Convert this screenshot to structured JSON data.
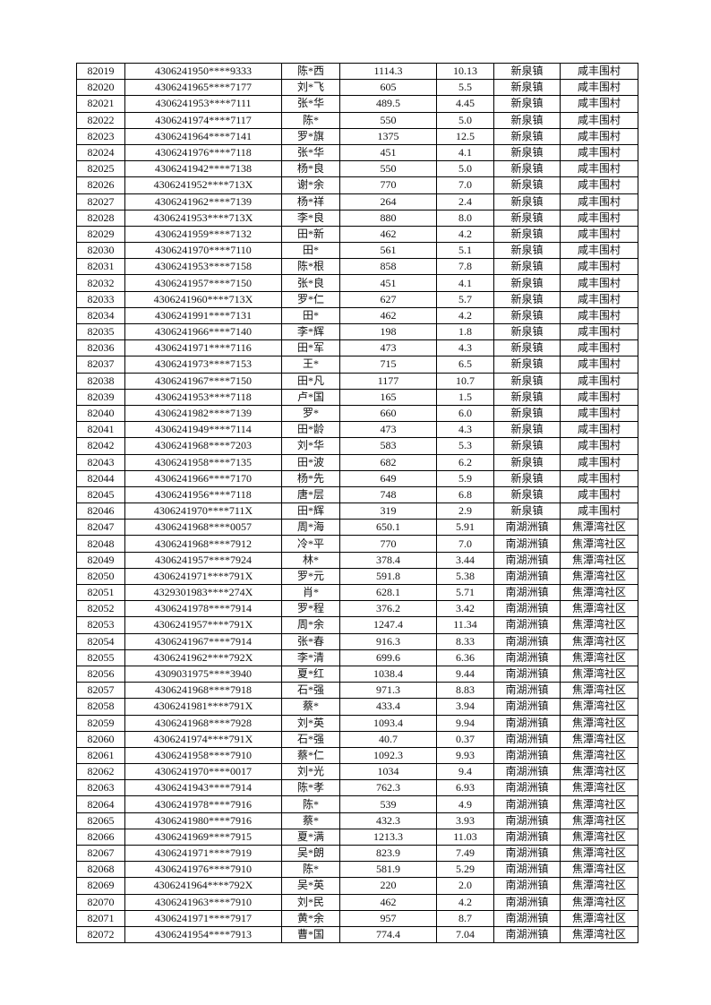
{
  "table": {
    "rows": [
      [
        "82019",
        "4306241950****9333",
        "陈*西",
        "1114.3",
        "10.13",
        "新泉镇",
        "咸丰围村"
      ],
      [
        "82020",
        "4306241965****7177",
        "刘*飞",
        "605",
        "5.5",
        "新泉镇",
        "咸丰围村"
      ],
      [
        "82021",
        "4306241953****7111",
        "张*华",
        "489.5",
        "4.45",
        "新泉镇",
        "咸丰围村"
      ],
      [
        "82022",
        "4306241974****7117",
        "陈*",
        "550",
        "5.0",
        "新泉镇",
        "咸丰围村"
      ],
      [
        "82023",
        "4306241964****7141",
        "罗*旗",
        "1375",
        "12.5",
        "新泉镇",
        "咸丰围村"
      ],
      [
        "82024",
        "4306241976****7118",
        "张*华",
        "451",
        "4.1",
        "新泉镇",
        "咸丰围村"
      ],
      [
        "82025",
        "4306241942****7138",
        "杨*良",
        "550",
        "5.0",
        "新泉镇",
        "咸丰围村"
      ],
      [
        "82026",
        "4306241952****713X",
        "谢*余",
        "770",
        "7.0",
        "新泉镇",
        "咸丰围村"
      ],
      [
        "82027",
        "4306241962****7139",
        "杨*祥",
        "264",
        "2.4",
        "新泉镇",
        "咸丰围村"
      ],
      [
        "82028",
        "4306241953****713X",
        "李*良",
        "880",
        "8.0",
        "新泉镇",
        "咸丰围村"
      ],
      [
        "82029",
        "4306241959****7132",
        "田*新",
        "462",
        "4.2",
        "新泉镇",
        "咸丰围村"
      ],
      [
        "82030",
        "4306241970****7110",
        "田*",
        "561",
        "5.1",
        "新泉镇",
        "咸丰围村"
      ],
      [
        "82031",
        "4306241953****7158",
        "陈*根",
        "858",
        "7.8",
        "新泉镇",
        "咸丰围村"
      ],
      [
        "82032",
        "4306241957****7150",
        "张*良",
        "451",
        "4.1",
        "新泉镇",
        "咸丰围村"
      ],
      [
        "82033",
        "4306241960****713X",
        "罗*仁",
        "627",
        "5.7",
        "新泉镇",
        "咸丰围村"
      ],
      [
        "82034",
        "4306241991****7131",
        "田*",
        "462",
        "4.2",
        "新泉镇",
        "咸丰围村"
      ],
      [
        "82035",
        "4306241966****7140",
        "李*辉",
        "198",
        "1.8",
        "新泉镇",
        "咸丰围村"
      ],
      [
        "82036",
        "4306241971****7116",
        "田*军",
        "473",
        "4.3",
        "新泉镇",
        "咸丰围村"
      ],
      [
        "82037",
        "4306241973****7153",
        "王*",
        "715",
        "6.5",
        "新泉镇",
        "咸丰围村"
      ],
      [
        "82038",
        "4306241967****7150",
        "田*凡",
        "1177",
        "10.7",
        "新泉镇",
        "咸丰围村"
      ],
      [
        "82039",
        "4306241953****7118",
        "卢*国",
        "165",
        "1.5",
        "新泉镇",
        "咸丰围村"
      ],
      [
        "82040",
        "4306241982****7139",
        "罗*",
        "660",
        "6.0",
        "新泉镇",
        "咸丰围村"
      ],
      [
        "82041",
        "4306241949****7114",
        "田*龄",
        "473",
        "4.3",
        "新泉镇",
        "咸丰围村"
      ],
      [
        "82042",
        "4306241968****7203",
        "刘*华",
        "583",
        "5.3",
        "新泉镇",
        "咸丰围村"
      ],
      [
        "82043",
        "4306241958****7135",
        "田*波",
        "682",
        "6.2",
        "新泉镇",
        "咸丰围村"
      ],
      [
        "82044",
        "4306241966****7170",
        "杨*先",
        "649",
        "5.9",
        "新泉镇",
        "咸丰围村"
      ],
      [
        "82045",
        "4306241956****7118",
        "唐*层",
        "748",
        "6.8",
        "新泉镇",
        "咸丰围村"
      ],
      [
        "82046",
        "4306241970****711X",
        "田*辉",
        "319",
        "2.9",
        "新泉镇",
        "咸丰围村"
      ],
      [
        "82047",
        "4306241968****0057",
        "周*海",
        "650.1",
        "5.91",
        "南湖洲镇",
        "焦潭湾社区"
      ],
      [
        "82048",
        "4306241968****7912",
        "冷*平",
        "770",
        "7.0",
        "南湖洲镇",
        "焦潭湾社区"
      ],
      [
        "82049",
        "4306241957****7924",
        "林*",
        "378.4",
        "3.44",
        "南湖洲镇",
        "焦潭湾社区"
      ],
      [
        "82050",
        "4306241971****791X",
        "罗*元",
        "591.8",
        "5.38",
        "南湖洲镇",
        "焦潭湾社区"
      ],
      [
        "82051",
        "4329301983****274X",
        "肖*",
        "628.1",
        "5.71",
        "南湖洲镇",
        "焦潭湾社区"
      ],
      [
        "82052",
        "4306241978****7914",
        "罗*程",
        "376.2",
        "3.42",
        "南湖洲镇",
        "焦潭湾社区"
      ],
      [
        "82053",
        "4306241957****791X",
        "周*余",
        "1247.4",
        "11.34",
        "南湖洲镇",
        "焦潭湾社区"
      ],
      [
        "82054",
        "4306241967****7914",
        "张*春",
        "916.3",
        "8.33",
        "南湖洲镇",
        "焦潭湾社区"
      ],
      [
        "82055",
        "4306241962****792X",
        "李*清",
        "699.6",
        "6.36",
        "南湖洲镇",
        "焦潭湾社区"
      ],
      [
        "82056",
        "4309031975****3940",
        "夏*红",
        "1038.4",
        "9.44",
        "南湖洲镇",
        "焦潭湾社区"
      ],
      [
        "82057",
        "4306241968****7918",
        "石*强",
        "971.3",
        "8.83",
        "南湖洲镇",
        "焦潭湾社区"
      ],
      [
        "82058",
        "4306241981****791X",
        "蔡*",
        "433.4",
        "3.94",
        "南湖洲镇",
        "焦潭湾社区"
      ],
      [
        "82059",
        "4306241968****7928",
        "刘*英",
        "1093.4",
        "9.94",
        "南湖洲镇",
        "焦潭湾社区"
      ],
      [
        "82060",
        "4306241974****791X",
        "石*强",
        "40.7",
        "0.37",
        "南湖洲镇",
        "焦潭湾社区"
      ],
      [
        "82061",
        "4306241958****7910",
        "蔡*仁",
        "1092.3",
        "9.93",
        "南湖洲镇",
        "焦潭湾社区"
      ],
      [
        "82062",
        "4306241970****0017",
        "刘*光",
        "1034",
        "9.4",
        "南湖洲镇",
        "焦潭湾社区"
      ],
      [
        "82063",
        "4306241943****7914",
        "陈*孝",
        "762.3",
        "6.93",
        "南湖洲镇",
        "焦潭湾社区"
      ],
      [
        "82064",
        "4306241978****7916",
        "陈*",
        "539",
        "4.9",
        "南湖洲镇",
        "焦潭湾社区"
      ],
      [
        "82065",
        "4306241980****7916",
        "蔡*",
        "432.3",
        "3.93",
        "南湖洲镇",
        "焦潭湾社区"
      ],
      [
        "82066",
        "4306241969****7915",
        "夏*满",
        "1213.3",
        "11.03",
        "南湖洲镇",
        "焦潭湾社区"
      ],
      [
        "82067",
        "4306241971****7919",
        "吴*朗",
        "823.9",
        "7.49",
        "南湖洲镇",
        "焦潭湾社区"
      ],
      [
        "82068",
        "4306241976****7910",
        "陈*",
        "581.9",
        "5.29",
        "南湖洲镇",
        "焦潭湾社区"
      ],
      [
        "82069",
        "4306241964****792X",
        "吴*英",
        "220",
        "2.0",
        "南湖洲镇",
        "焦潭湾社区"
      ],
      [
        "82070",
        "4306241963****7910",
        "刘*民",
        "462",
        "4.2",
        "南湖洲镇",
        "焦潭湾社区"
      ],
      [
        "82071",
        "4306241971****7917",
        "黄*余",
        "957",
        "8.7",
        "南湖洲镇",
        "焦潭湾社区"
      ],
      [
        "82072",
        "4306241954****7913",
        "曹*国",
        "774.4",
        "7.04",
        "南湖洲镇",
        "焦潭湾社区"
      ]
    ]
  }
}
